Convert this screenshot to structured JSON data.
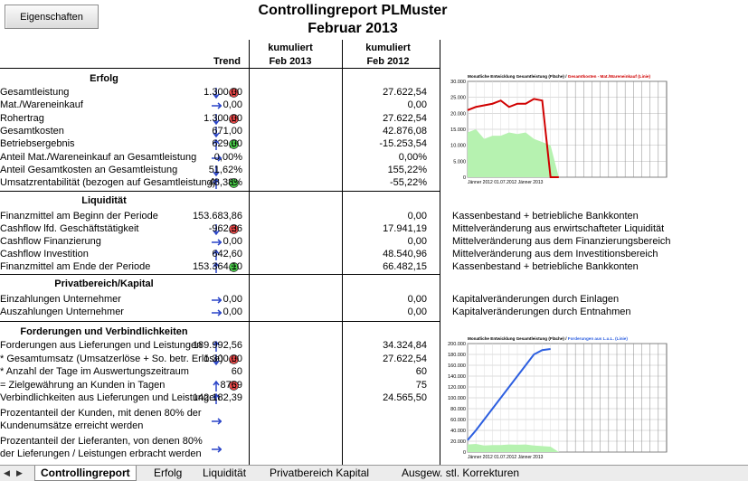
{
  "toolbar": {
    "button_label": "Eigenschaften"
  },
  "title": {
    "line1": "Controllingreport PLMuster",
    "line2": "Februar 2013"
  },
  "columns": {
    "trend": "Trend",
    "cum1_l1": "kumuliert",
    "cum1_l2": "Feb 2013",
    "cum2_l1": "kumuliert",
    "cum2_l2": "Feb 2012"
  },
  "sections": {
    "erfolg": "Erfolg",
    "liquiditaet": "Liquidität",
    "privat": "Privatbereich/Kapital",
    "forderungen": "Forderungen und Verbindlichkeiten"
  },
  "erfolg_rows": [
    {
      "label": "Gesamtleistung",
      "v1": "1.300,00",
      "v2": "27.622,54",
      "arrow": "down",
      "smiley": "sad"
    },
    {
      "label": "Mat./Wareneinkauf",
      "v1": "0,00",
      "v2": "0,00",
      "arrow": "right",
      "smiley": ""
    },
    {
      "label": "Rohertrag",
      "v1": "1.300,00",
      "v2": "27.622,54",
      "arrow": "down",
      "smiley": "sad"
    },
    {
      "label": "Gesamtkosten",
      "v1": "671,00",
      "v2": "42.876,08",
      "arrow": "down",
      "smiley": ""
    },
    {
      "label": "Betriebsergebnis",
      "v1": "629,00",
      "v2": "-15.253,54",
      "arrow": "up",
      "smiley": "happy"
    },
    {
      "label": "Anteil Mat./Wareneinkauf an Gesamtleistung",
      "v1": "0,00%",
      "v2": "0,00%",
      "arrow": "right",
      "smiley": ""
    },
    {
      "label": "Anteil Gesamtkosten an Gesamtleistung",
      "v1": "51,62%",
      "v2": "155,22%",
      "arrow": "down",
      "smiley": ""
    },
    {
      "label": "Umsatzrentabilität (bezogen auf Gesamtleistung)",
      "v1": "48,38%",
      "v2": "-55,22%",
      "arrow": "up",
      "smiley": "happy"
    }
  ],
  "liquiditaet_rows": [
    {
      "label": "Finanzmittel am Beginn der Periode",
      "v1": "153.683,86",
      "v2": "0,00",
      "arrow": "",
      "smiley": "",
      "note": "Kassenbestand + betriebliche Bankkonten"
    },
    {
      "label": "Cashflow lfd. Geschäftstätigkeit",
      "v1": "-962,36",
      "v2": "17.941,19",
      "arrow": "down",
      "smiley": "sad",
      "note": "Mittelveränderung aus erwirtschafteter Liquidität"
    },
    {
      "label": "Cashflow Finanzierung",
      "v1": "0,00",
      "v2": "0,00",
      "arrow": "right",
      "smiley": "",
      "note": "Mittelveränderung aus dem Finanzierungsbereich"
    },
    {
      "label": "Cashflow Investition",
      "v1": "642,60",
      "v2": "48.540,96",
      "arrow": "up",
      "smiley": "",
      "note": "Mittelveränderung aus dem Investitionsbereich"
    },
    {
      "label": "Finanzmittel am Ende der Periode",
      "v1": "153.364,10",
      "v2": "66.482,15",
      "arrow": "up",
      "smiley": "happy",
      "note": "Kassenbestand + betriebliche Bankkonten"
    }
  ],
  "privat_rows": [
    {
      "label": "Einzahlungen Unternehmer",
      "v1": "0,00",
      "v2": "0,00",
      "arrow": "right",
      "smiley": "",
      "note": "Kapitalveränderungen durch Einlagen"
    },
    {
      "label": "Auszahlungen Unternehmer",
      "v1": "0,00",
      "v2": "0,00",
      "arrow": "right",
      "smiley": "",
      "note": "Kapitalveränderungen durch Entnahmen"
    }
  ],
  "forderungen_rows": [
    {
      "label": "Forderungen aus Lieferungen und Leistungen",
      "v1": "189.992,56",
      "v2": "34.324,84",
      "arrow": "up",
      "smiley": ""
    },
    {
      "label": "* Gesamtumsatz (Umsatzerlöse + So. betr. Erlöse)",
      "v1": "1.300,00",
      "v2": "27.622,54",
      "arrow": "down",
      "smiley": "sad"
    },
    {
      "label": "* Anzahl der Tage im Auswertungszeitraum",
      "v1": "60",
      "v2": "60",
      "arrow": "",
      "smiley": ""
    },
    {
      "label": "= Zielgewährung an Kunden in Tagen",
      "v1": "8769",
      "v2": "75",
      "arrow": "up",
      "smiley": "sad"
    },
    {
      "label": "Verbindlichkeiten aus Lieferungen und Leistungen",
      "v1": "142.182,39",
      "v2": "24.565,50",
      "arrow": "up",
      "smiley": ""
    }
  ],
  "forderungen_multiline": [
    {
      "line1": "Prozentanteil der Kunden, mit denen 80% der",
      "line2": "Kundenumsätze erreicht werden",
      "arrow": "right"
    },
    {
      "line1": "Prozentanteil der Lieferanten, von denen 80%",
      "line2": "der Lieferungen / Leistungen erbracht werden",
      "arrow": "right"
    }
  ],
  "chart_data": [
    {
      "type": "line",
      "title": "Monatliche Entwicklung Gesamtleistung (Fläche)",
      "title_sep": "/",
      "title2": "Gesamtkosten - Mat./Wareneinkauf (Linie)",
      "ylim": [
        0,
        30000
      ],
      "yticks": [
        "30.000",
        "25.000",
        "20.000",
        "15.000",
        "10.000",
        "5.000",
        "0"
      ],
      "xlabels": "Jänner 2012 01.07.2012 Jänner 2013",
      "area_values": [
        14000,
        15000,
        12000,
        13000,
        13000,
        14000,
        13500,
        14000,
        12000,
        11000,
        10000,
        0
      ],
      "line_values": [
        21000,
        22000,
        22500,
        23000,
        24000,
        22000,
        23000,
        23000,
        24500,
        24000,
        0,
        0
      ],
      "colors": {
        "area": "#b6f2b0",
        "line": "#d00000"
      }
    },
    {
      "type": "line",
      "title": "Monatliche Entwicklung Gesamtleistung (Fläche)",
      "title_sep": "/",
      "title2": "Forderungen aus L.u.L. (Linie)",
      "ylim": [
        0,
        200000
      ],
      "yticks": [
        "200.000",
        "180.000",
        "160.000",
        "140.000",
        "120.000",
        "100.000",
        "80.000",
        "60.000",
        "40.000",
        "20.000",
        "0"
      ],
      "xlabels": "Jänner 2012 01.07.2012 Jänner 2013",
      "area_values": [
        14000,
        15000,
        12000,
        13000,
        13000,
        14000,
        13500,
        14000,
        12000,
        11000,
        10000,
        0
      ],
      "line_values": [
        22000,
        40000,
        60000,
        80000,
        100000,
        120000,
        140000,
        160000,
        180000,
        188000,
        190000
      ],
      "colors": {
        "area": "#b6f2b0",
        "line": "#2d5fe0"
      }
    }
  ],
  "tabs": [
    "Controllingreport",
    "Erfolg",
    "Liquidität",
    "Privatbereich Kapital",
    "Ausgew. stl. Korrekturen"
  ]
}
